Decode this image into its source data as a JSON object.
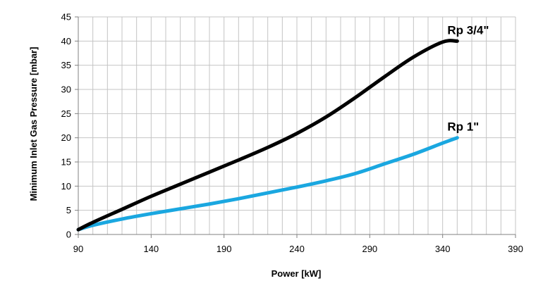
{
  "chart_data": {
    "type": "line",
    "xlabel": "Power  [kW]",
    "ylabel": "Minimum Inlet Gas Pressure  [mbar]",
    "xlim": [
      90,
      390
    ],
    "ylim": [
      0,
      45
    ],
    "x_ticks": [
      90,
      140,
      190,
      240,
      290,
      340,
      390
    ],
    "y_ticks": [
      0,
      5,
      10,
      15,
      20,
      25,
      30,
      35,
      40,
      45
    ],
    "x_minor_step": 10,
    "grid": true,
    "legend": "none",
    "series": [
      {
        "name": "Rp 3/4\"",
        "color": "#000000",
        "x": [
          90,
          100,
          120,
          140,
          160,
          180,
          200,
          220,
          240,
          260,
          280,
          300,
          320,
          340,
          350
        ],
        "y": [
          1,
          2.5,
          5.2,
          7.9,
          10.4,
          12.9,
          15.4,
          18.0,
          20.9,
          24.3,
          28.3,
          32.6,
          36.7,
          39.8,
          40
        ]
      },
      {
        "name": "Rp 1\"",
        "color": "#1aa7e0",
        "x": [
          90,
          100,
          120,
          140,
          160,
          180,
          200,
          220,
          240,
          260,
          280,
          300,
          320,
          340,
          350
        ],
        "y": [
          1,
          1.9,
          3.2,
          4.3,
          5.3,
          6.3,
          7.4,
          8.6,
          9.8,
          11.1,
          12.6,
          14.6,
          16.6,
          18.9,
          20
        ]
      }
    ]
  }
}
